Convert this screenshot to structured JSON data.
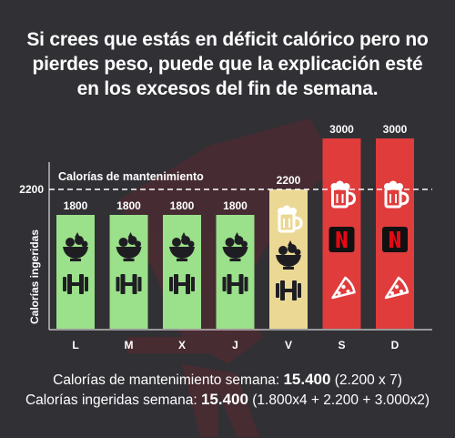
{
  "headline": {
    "line1": "Si crees que estás en déficit calórico pero no",
    "line2": "pierdes peso, puede que la explicación esté",
    "line3": "en los excesos del fin de semana."
  },
  "chart_data": {
    "type": "bar",
    "categories": [
      "L",
      "M",
      "X",
      "J",
      "V",
      "S",
      "D"
    ],
    "values": [
      1800,
      1800,
      1800,
      1800,
      2200,
      3000,
      3000
    ],
    "data_labels": [
      "1800",
      "1800",
      "1800",
      "1800",
      "2200",
      "3000",
      "3000"
    ],
    "ylabel": "Calorías ingeridas",
    "ytick_label": "2200",
    "ylim": [
      0,
      3000
    ],
    "reference_line": {
      "value": 2200,
      "label": "Calorías de mantenimiento"
    },
    "colors": [
      "#9be08a",
      "#9be08a",
      "#9be08a",
      "#9be08a",
      "#ecd895",
      "#e03c3c",
      "#e03c3c"
    ],
    "icons": [
      [
        "salad-icon",
        "dumbbell-icon"
      ],
      [
        "salad-icon",
        "dumbbell-icon"
      ],
      [
        "salad-icon",
        "dumbbell-icon"
      ],
      [
        "salad-icon",
        "dumbbell-icon"
      ],
      [
        "beer-icon",
        "salad-icon",
        "dumbbell-icon"
      ],
      [
        "beer-icon",
        "netflix-icon",
        "pizza-icon"
      ],
      [
        "beer-icon",
        "netflix-icon",
        "pizza-icon"
      ]
    ]
  },
  "summary": {
    "line1_text": "Calorías de mantenimiento semana: ",
    "line1_value": "15.400",
    "line1_detail": " (2.200 x 7)",
    "line2_text": "Calorías ingeridas semana: ",
    "line2_value": "15.400",
    "line2_detail": " (1.800x4 + 2.200 + 3.000x2)"
  }
}
